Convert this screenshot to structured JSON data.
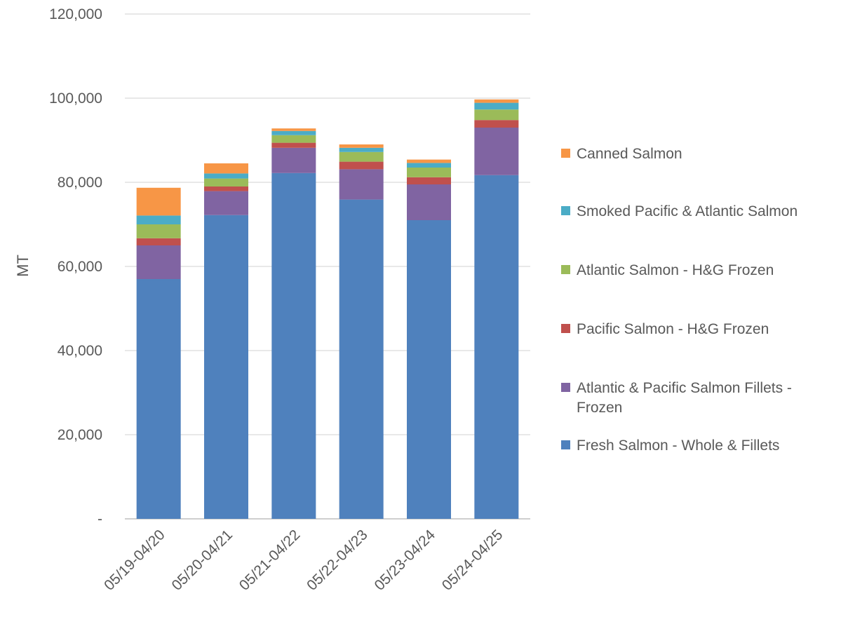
{
  "chart_data": {
    "type": "bar",
    "stacked": true,
    "ylabel": "MT",
    "xlabel": "",
    "ylim": [
      0,
      120000
    ],
    "yticks": [
      0,
      20000,
      40000,
      60000,
      80000,
      100000,
      120000
    ],
    "ytick_labels": [
      "-",
      "20,000",
      "40,000",
      "60,000",
      "80,000",
      "100,000",
      "120,000"
    ],
    "grid": true,
    "legend_position": "right",
    "categories": [
      "05/19-04/20",
      "05/20-04/21",
      "05/21-04/22",
      "05/22-04/23",
      "05/23-04/24",
      "05/24-04/25"
    ],
    "series": [
      {
        "name": "Fresh Salmon - Whole & Fillets",
        "color": "#4F81BD",
        "values": [
          57000,
          72200,
          82200,
          75900,
          71000,
          81700
        ]
      },
      {
        "name": "Atlantic & Pacific Salmon Fillets - Frozen",
        "color": "#8064A2",
        "values": [
          8000,
          5700,
          6000,
          7200,
          8500,
          11300
        ]
      },
      {
        "name": "Pacific Salmon - H&G Frozen",
        "color": "#C0504D",
        "values": [
          1700,
          1100,
          1200,
          1800,
          1700,
          1800
        ]
      },
      {
        "name": "Atlantic Salmon - H&G Frozen",
        "color": "#9BBB59",
        "values": [
          3300,
          1900,
          1800,
          2300,
          2300,
          2500
        ]
      },
      {
        "name": "Smoked Pacific & Atlantic Salmon",
        "color": "#4BACC6",
        "values": [
          2100,
          1200,
          1000,
          1000,
          1100,
          1600
        ]
      },
      {
        "name": "Canned Salmon",
        "color": "#F79646",
        "values": [
          6600,
          2400,
          600,
          800,
          800,
          800
        ]
      }
    ]
  }
}
